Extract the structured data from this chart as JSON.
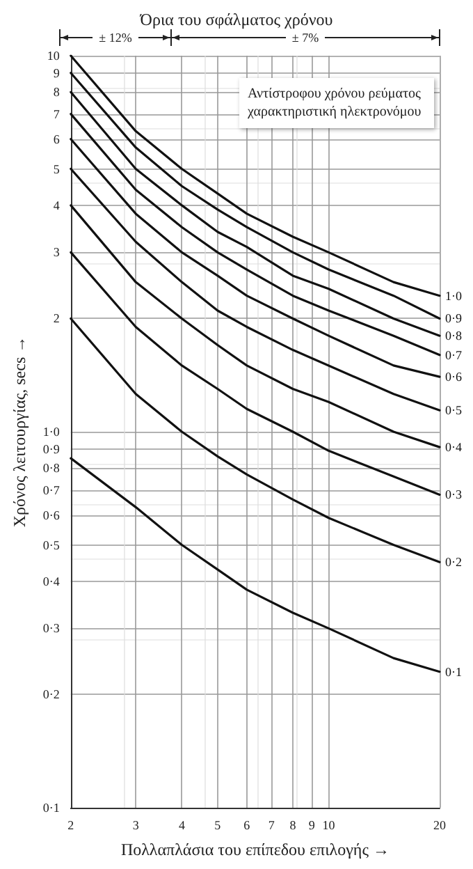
{
  "chart_data": {
    "type": "line",
    "title": "Όρια του σφάλματος χρόνου",
    "xlabel": "Πολλαπλάσια του επίπεδου επιλογής →",
    "ylabel": "Χρόνος λειτουργίας, secs →",
    "annotations": [
      "Αντίστροφου χρόνου ρεύματος χαρακτηριστική ηλεκτρονόμου",
      "± 12%",
      "± 7%"
    ],
    "x": [
      2,
      3,
      4,
      5,
      6,
      8,
      10,
      15,
      20
    ],
    "series": [
      {
        "name": "1·0",
        "color": "#111111",
        "values": [
          10,
          6.3,
          5.0,
          4.3,
          3.8,
          3.3,
          3.0,
          2.5,
          2.3
        ]
      },
      {
        "name": "0·9",
        "color": "#111111",
        "values": [
          9.0,
          5.7,
          4.5,
          3.9,
          3.5,
          3.0,
          2.7,
          2.3,
          2.0
        ]
      },
      {
        "name": "0·8",
        "color": "#111111",
        "values": [
          8.0,
          5.0,
          4.0,
          3.4,
          3.1,
          2.6,
          2.4,
          2.0,
          1.8
        ]
      },
      {
        "name": "0·7",
        "color": "#111111",
        "values": [
          7.0,
          4.4,
          3.5,
          3.0,
          2.7,
          2.3,
          2.1,
          1.8,
          1.6
        ]
      },
      {
        "name": "0·6",
        "color": "#111111",
        "values": [
          6.0,
          3.8,
          3.0,
          2.6,
          2.3,
          2.0,
          1.8,
          1.5,
          1.4
        ]
      },
      {
        "name": "0·5",
        "color": "#111111",
        "values": [
          5.0,
          3.2,
          2.5,
          2.1,
          1.9,
          1.65,
          1.5,
          1.26,
          1.14
        ]
      },
      {
        "name": "0·4",
        "color": "#111111",
        "values": [
          4.0,
          2.5,
          2.0,
          1.7,
          1.5,
          1.3,
          1.2,
          1.0,
          0.91
        ]
      },
      {
        "name": "0·3",
        "color": "#111111",
        "values": [
          3.0,
          1.9,
          1.5,
          1.3,
          1.15,
          1.0,
          0.89,
          0.76,
          0.68
        ]
      },
      {
        "name": "0·2",
        "color": "#111111",
        "values": [
          2.0,
          1.26,
          1.0,
          0.86,
          0.77,
          0.66,
          0.59,
          0.5,
          0.45
        ]
      },
      {
        "name": "0·1",
        "color": "#111111",
        "values": [
          0.85,
          0.63,
          0.5,
          0.43,
          0.38,
          0.33,
          0.3,
          0.25,
          0.23
        ]
      }
    ],
    "log": "xy",
    "xlim": [
      2,
      20
    ],
    "ylim": [
      0.1,
      10
    ],
    "xticks": [
      2,
      3,
      4,
      5,
      6,
      7,
      8,
      9,
      10,
      20
    ],
    "yticks": [
      {
        "value": 0.1,
        "label": "0·1"
      },
      {
        "value": 0.2,
        "label": "0·2"
      },
      {
        "value": 0.3,
        "label": "0·3"
      },
      {
        "value": 0.4,
        "label": "0·4"
      },
      {
        "value": 0.5,
        "label": "0·5"
      },
      {
        "value": 0.6,
        "label": "0·6"
      },
      {
        "value": 0.7,
        "label": "0·7"
      },
      {
        "value": 0.8,
        "label": "0·8"
      },
      {
        "value": 0.9,
        "label": "0·9"
      },
      {
        "value": 1,
        "label": "1·0"
      },
      2,
      3,
      4,
      5,
      6,
      7,
      8,
      9,
      10
    ],
    "grid": true,
    "legend": false,
    "marker": "none",
    "line_style": "solid"
  }
}
